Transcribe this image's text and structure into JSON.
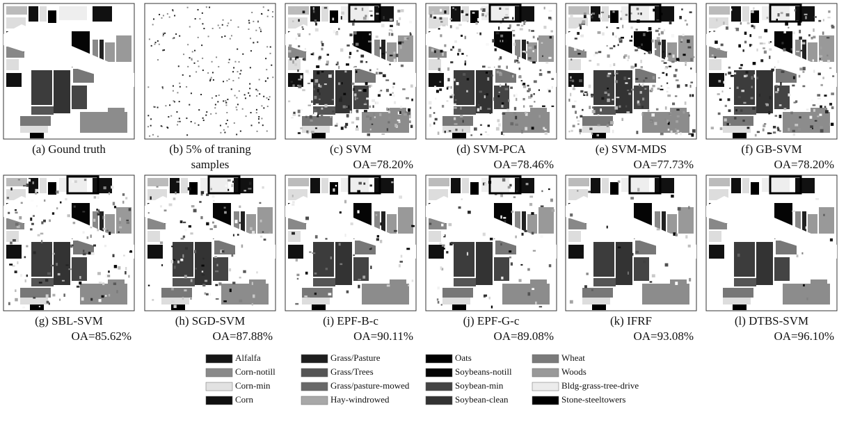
{
  "panels": [
    {
      "caption": "(a) Gound truth"
    },
    {
      "caption": "(b) 5% of traning",
      "caption2": "samples"
    },
    {
      "caption": "(c) SVM",
      "oa": "OA=78.20%"
    },
    {
      "caption": "(d) SVM-PCA",
      "oa": "OA=78.46%"
    },
    {
      "caption": "(e) SVM-MDS",
      "oa": "OA=77.73%"
    },
    {
      "caption": "(f) GB-SVM",
      "oa": "OA=78.20%"
    },
    {
      "caption": "(g) SBL-SVM",
      "oa": "OA=85.62%"
    },
    {
      "caption": "(h) SGD-SVM",
      "oa": "OA=87.88%"
    },
    {
      "caption": "(i) EPF-B-c",
      "oa": "OA=90.11%"
    },
    {
      "caption": "(j) EPF-G-c",
      "oa": "OA=89.08%"
    },
    {
      "caption": "(k) IFRF",
      "oa": "OA=93.08%"
    },
    {
      "caption": "(l) DTBS-SVM",
      "oa": "OA=96.10%"
    }
  ],
  "legend": [
    {
      "label": "Alfalfa",
      "color": "#151515"
    },
    {
      "label": "Corn-notill",
      "color": "#8a8a8a"
    },
    {
      "label": "Corn-min",
      "color": "#e2e2e2"
    },
    {
      "label": "Corn",
      "color": "#101010"
    },
    {
      "label": "Grass/Pasture",
      "color": "#1e1e1e"
    },
    {
      "label": "Grass/Trees",
      "color": "#555555"
    },
    {
      "label": "Grass/pasture-mowed",
      "color": "#686868"
    },
    {
      "label": "Hay-windrowed",
      "color": "#a8a8a8"
    },
    {
      "label": "Oats",
      "color": "#000000"
    },
    {
      "label": "Soybeans-notill",
      "color": "#050505"
    },
    {
      "label": "Soybean-min",
      "color": "#444444"
    },
    {
      "label": "Soybean-clean",
      "color": "#333333"
    },
    {
      "label": "Wheat",
      "color": "#7a7a7a"
    },
    {
      "label": "Woods",
      "color": "#999999"
    },
    {
      "label": "Bldg-grass-tree-drive",
      "color": "#ececec"
    },
    {
      "label": "Stone-steeltowers",
      "color": "#000000"
    }
  ]
}
